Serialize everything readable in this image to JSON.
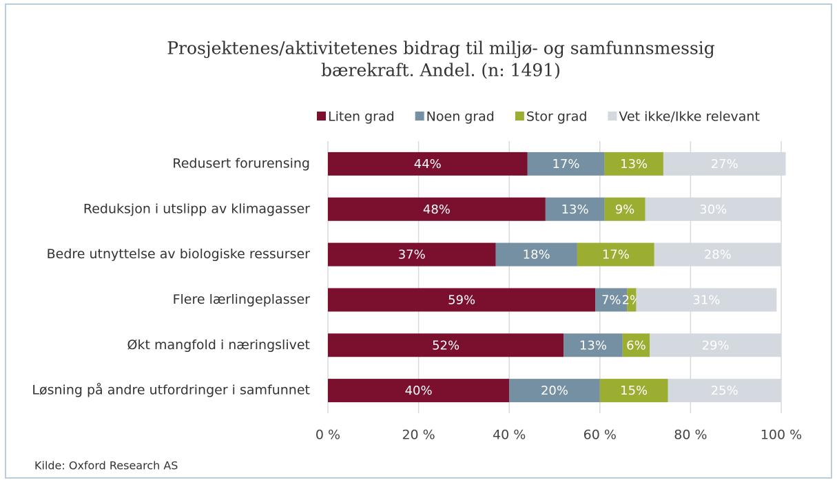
{
  "chart_data": {
    "type": "stacked-bar-horizontal",
    "title": [
      "Prosjektenes/aktivitetenes bidrag til miljø- og samfunnsmessig",
      "bærekraft. Andel. (n: 1491)"
    ],
    "categories": [
      "Redusert forurensing",
      "Reduksjon i utslipp av klimagasser",
      "Bedre utnyttelse av biologiske ressurser",
      "Flere lærlingeplasser",
      "Økt mangfold i næringslivet",
      "Løsning på andre utfordringer i samfunnet"
    ],
    "series": [
      {
        "name": "Liten grad",
        "color": "#7b0f2e",
        "values": [
          44,
          48,
          37,
          59,
          52,
          40
        ],
        "value_labels": [
          "44%",
          "48%",
          "37%",
          "59%",
          "52%",
          "40%"
        ]
      },
      {
        "name": "Noen grad",
        "color": "#7590a3",
        "values": [
          17,
          13,
          18,
          7,
          13,
          20
        ],
        "value_labels": [
          "17%",
          "13%",
          "18%",
          "7%",
          "13%",
          "20%"
        ]
      },
      {
        "name": "Stor grad",
        "color": "#9bae32",
        "values": [
          13,
          9,
          17,
          2,
          6,
          15
        ],
        "value_labels": [
          "13%",
          "9%",
          "17%",
          "2%",
          "6%",
          "15%"
        ]
      },
      {
        "name": "Vet ikke/Ikke relevant",
        "color": "#d3d9df",
        "values": [
          27,
          30,
          28,
          31,
          29,
          25
        ],
        "value_labels": [
          "27%",
          "30%",
          "28%",
          "31%",
          "29%",
          "25%"
        ]
      }
    ],
    "xlim": [
      0,
      100
    ],
    "xticks": [
      {
        "value": 0,
        "label": "0 %"
      },
      {
        "value": 20,
        "label": "20 %"
      },
      {
        "value": 40,
        "label": "40 %"
      },
      {
        "value": 60,
        "label": "60 %"
      },
      {
        "value": 80,
        "label": "80 %"
      },
      {
        "value": 100,
        "label": "100 %"
      }
    ],
    "grid": true,
    "legend": "top",
    "source": "Kilde: Oxford Research AS"
  }
}
